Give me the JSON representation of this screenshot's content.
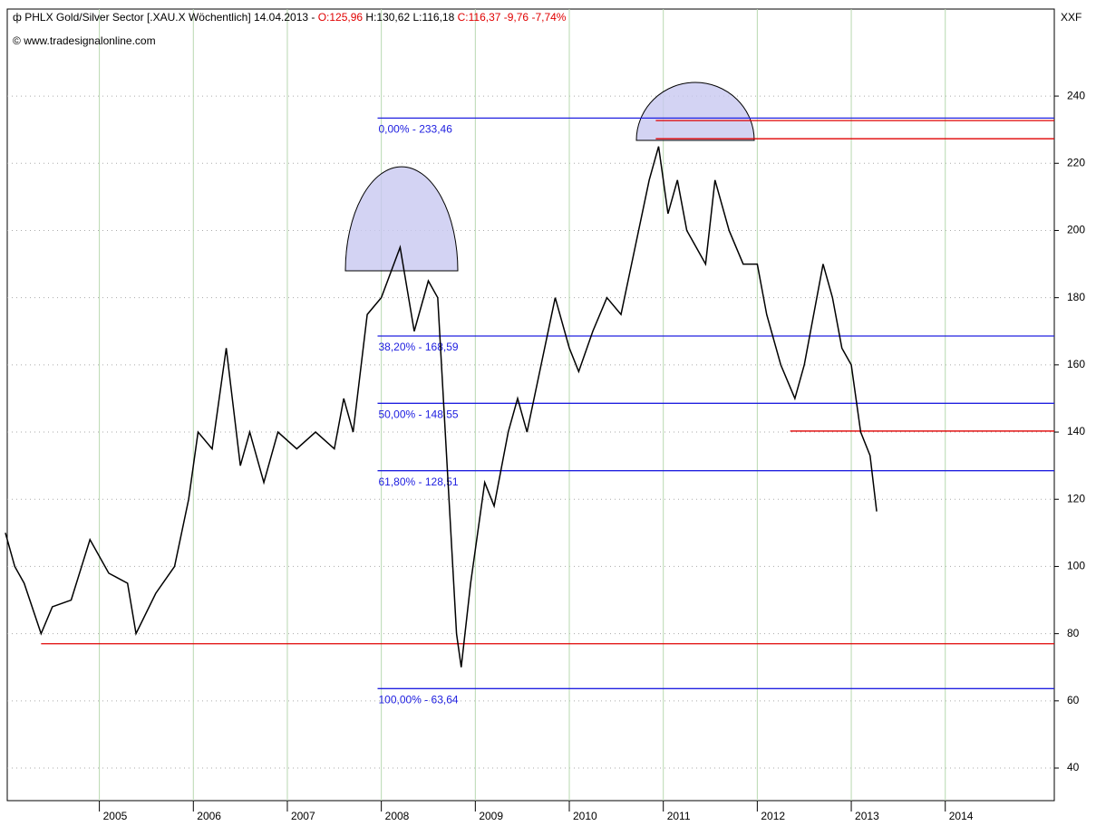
{
  "header": {
    "title_parts": [
      "PHLX Gold/Silver Sector [.XAU.X  Wöchentlich] 14.04.2013 - ",
      "O:125,96",
      " H:130,62 L:116,18 ",
      "C:116,37 -9,76 -7,74%"
    ],
    "source": "www.tradesignalonline.com",
    "symbol": "XXF"
  },
  "chart_data": {
    "type": "line",
    "x": [
      2004.0,
      2004.1,
      2004.2,
      2004.38,
      2004.5,
      2004.7,
      2004.9,
      2005.1,
      2005.3,
      2005.39,
      2005.6,
      2005.8,
      2005.95,
      2006.05,
      2006.2,
      2006.35,
      2006.5,
      2006.6,
      2006.75,
      2006.9,
      2007.1,
      2007.3,
      2007.5,
      2007.6,
      2007.7,
      2007.85,
      2008.0,
      2008.2,
      2008.35,
      2008.5,
      2008.6,
      2008.7,
      2008.8,
      2008.85,
      2008.95,
      2009.1,
      2009.2,
      2009.35,
      2009.45,
      2009.55,
      2009.7,
      2009.85,
      2010.0,
      2010.1,
      2010.25,
      2010.4,
      2010.55,
      2010.7,
      2010.85,
      2010.95,
      2011.05,
      2011.15,
      2011.25,
      2011.35,
      2011.45,
      2011.55,
      2011.7,
      2011.85,
      2012.0,
      2012.1,
      2012.25,
      2012.4,
      2012.5,
      2012.6,
      2012.7,
      2012.8,
      2012.9,
      2013.0,
      2013.1,
      2013.2,
      2013.27
    ],
    "series": [
      {
        "name": "PHLX Gold/Silver Sector",
        "color": "#000000",
        "values": [
          110,
          100,
          95,
          80,
          88,
          90,
          108,
          98,
          95,
          80,
          92,
          100,
          120,
          140,
          135,
          165,
          130,
          140,
          125,
          140,
          135,
          140,
          135,
          150,
          140,
          175,
          180,
          195,
          170,
          185,
          180,
          130,
          80,
          70,
          95,
          125,
          118,
          140,
          150,
          140,
          160,
          180,
          165,
          158,
          170,
          180,
          175,
          195,
          215,
          225,
          205,
          215,
          200,
          195,
          190,
          215,
          200,
          190,
          190,
          175,
          160,
          150,
          160,
          175,
          190,
          180,
          165,
          160,
          140,
          133,
          116.37
        ]
      }
    ],
    "xlim": [
      2004.02,
      2015.16
    ],
    "xticks": [
      2005,
      2006,
      2007,
      2008,
      2009,
      2010,
      2011,
      2012,
      2013,
      2014
    ],
    "ylim": [
      30.3,
      265.9
    ],
    "yticks": [
      40,
      60,
      80,
      100,
      120,
      140,
      160,
      180,
      200,
      220,
      240
    ],
    "fib_levels": [
      {
        "value": 233.46,
        "label": "0,00% - 233,46"
      },
      {
        "value": 168.59,
        "label": "38,20% - 168,59"
      },
      {
        "value": 148.55,
        "label": "50,00% - 148,55"
      },
      {
        "value": 128.51,
        "label": "61,80% - 128,51"
      },
      {
        "value": 63.64,
        "label": "100,00% - 63,64"
      }
    ],
    "fib_start": 2007.96,
    "fib_color": "#2020e0",
    "red_lines": [
      {
        "value": 77,
        "start": 2004.38
      },
      {
        "value": 140.3,
        "start": 2012.35
      },
      {
        "value": 232.7,
        "start": 2010.92
      },
      {
        "value": 227.3,
        "start": 2010.92
      }
    ],
    "red_color": "#e00000",
    "grid": true
  }
}
